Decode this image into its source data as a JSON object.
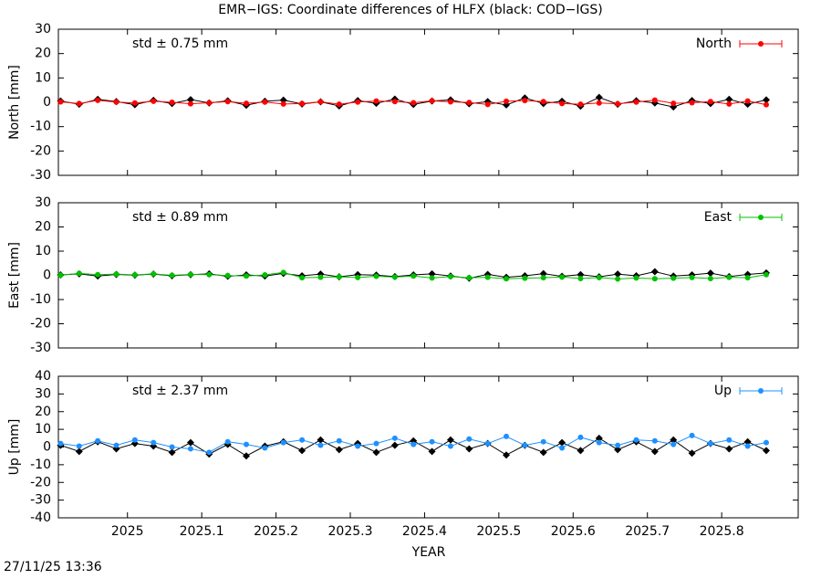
{
  "title": "EMR−IGS: Coordinate differences of HLFX (black: COD−IGS)",
  "xlabel": "YEAR",
  "timestamp": "27/11/25 13:36",
  "chart_data": [
    {
      "type": "line",
      "ylabel": "North [mm]",
      "annotation": "std ± 0.75 mm",
      "annotation_color": "#ff0000",
      "legend": "top-right",
      "xlim": [
        2024.907,
        2025.903
      ],
      "xticks": [
        2025,
        2025.1,
        2025.2,
        2025.3,
        2025.4,
        2025.5,
        2025.6,
        2025.7,
        2025.8
      ],
      "ylim": [
        -30,
        30
      ],
      "yticks": [
        -30,
        -20,
        -10,
        0,
        10,
        20,
        30
      ],
      "x": [
        2024.91,
        2024.935,
        2024.96,
        2024.985,
        2025.01,
        2025.035,
        2025.06,
        2025.085,
        2025.11,
        2025.135,
        2025.16,
        2025.185,
        2025.21,
        2025.235,
        2025.26,
        2025.285,
        2025.31,
        2025.335,
        2025.36,
        2025.385,
        2025.41,
        2025.435,
        2025.46,
        2025.485,
        2025.51,
        2025.535,
        2025.56,
        2025.585,
        2025.61,
        2025.635,
        2025.66,
        2025.685,
        2025.71,
        2025.735,
        2025.76,
        2025.785,
        2025.81,
        2025.835,
        2025.86
      ],
      "series": [
        {
          "color": "#000000",
          "values": [
            0.5,
            -0.8,
            1.2,
            0.3,
            -1.0,
            0.8,
            -0.5,
            1.1,
            -0.3,
            0.6,
            -1.2,
            0.4,
            0.9,
            -0.7,
            0.2,
            -1.5,
            0.7,
            -0.4,
            1.3,
            -0.9,
            0.5,
            1.0,
            -0.6,
            0.3,
            -1.1,
            1.8,
            -0.5,
            0.4,
            -1.6,
            2.0,
            -0.8,
            0.6,
            -0.3,
            -1.9,
            0.7,
            -0.5,
            1.2,
            -0.8,
            1.0
          ]
        },
        {
          "name": "North",
          "color": "#ff0000",
          "values": [
            0.2,
            -0.5,
            0.8,
            0.1,
            -0.3,
            0.4,
            0.0,
            -0.6,
            -0.2,
            0.3,
            -0.4,
            0.1,
            -0.7,
            -0.5,
            0.2,
            -0.8,
            0.1,
            0.5,
            0.3,
            -0.2,
            0.6,
            0.2,
            -0.1,
            -0.9,
            0.4,
            0.7,
            0.3,
            -0.5,
            -0.8,
            -0.3,
            -0.6,
            0.1,
            0.9,
            -0.4,
            -0.2,
            0.3,
            -0.7,
            0.5,
            -1.0
          ]
        }
      ]
    },
    {
      "type": "line",
      "ylabel": "East [mm]",
      "annotation": "std ± 0.89 mm",
      "annotation_color": "#00c000",
      "legend": "top-right",
      "xlim": [
        2024.907,
        2025.903
      ],
      "xticks": [
        2025,
        2025.1,
        2025.2,
        2025.3,
        2025.4,
        2025.5,
        2025.6,
        2025.7,
        2025.8
      ],
      "ylim": [
        -30,
        30
      ],
      "yticks": [
        -30,
        -20,
        -10,
        0,
        10,
        20,
        30
      ],
      "x": [
        2024.91,
        2024.935,
        2024.96,
        2024.985,
        2025.01,
        2025.035,
        2025.06,
        2025.085,
        2025.11,
        2025.135,
        2025.16,
        2025.185,
        2025.21,
        2025.235,
        2025.26,
        2025.285,
        2025.31,
        2025.335,
        2025.36,
        2025.385,
        2025.41,
        2025.435,
        2025.46,
        2025.485,
        2025.51,
        2025.535,
        2025.56,
        2025.585,
        2025.61,
        2025.635,
        2025.66,
        2025.685,
        2025.71,
        2025.735,
        2025.76,
        2025.785,
        2025.81,
        2025.835,
        2025.86
      ],
      "series": [
        {
          "color": "#000000",
          "values": [
            0.2,
            0.6,
            -0.3,
            0.4,
            0.1,
            0.5,
            -0.2,
            0.3,
            0.6,
            -0.4,
            0.2,
            -0.3,
            0.8,
            -0.2,
            0.5,
            -0.6,
            0.3,
            0.1,
            -0.5,
            0.2,
            0.6,
            -0.3,
            -1.2,
            0.4,
            -0.8,
            -0.2,
            0.7,
            -0.4,
            0.3,
            -0.6,
            0.5,
            -0.2,
            1.5,
            -0.3,
            0.2,
            0.9,
            -0.5,
            0.4,
            1.0
          ]
        },
        {
          "name": "East",
          "color": "#00c000",
          "values": [
            0.1,
            0.8,
            0.3,
            0.5,
            0.2,
            0.6,
            0.0,
            0.4,
            0.3,
            -0.1,
            -0.3,
            0.2,
            1.2,
            -1.0,
            -0.8,
            -0.6,
            -0.9,
            -0.4,
            -0.7,
            -0.3,
            -1.1,
            -0.5,
            -1.0,
            -0.8,
            -1.4,
            -1.2,
            -1.0,
            -0.7,
            -1.3,
            -0.9,
            -1.5,
            -1.1,
            -1.4,
            -1.2,
            -0.9,
            -1.3,
            -0.8,
            -1.0,
            0.3
          ]
        }
      ]
    },
    {
      "type": "line",
      "ylabel": "Up [mm]",
      "annotation": "std ± 2.37 mm",
      "annotation_color": "#1e90ff",
      "legend": "top-right",
      "xlim": [
        2024.907,
        2025.903
      ],
      "xticks": [
        2025,
        2025.1,
        2025.2,
        2025.3,
        2025.4,
        2025.5,
        2025.6,
        2025.7,
        2025.8
      ],
      "ylim": [
        -40,
        40
      ],
      "yticks": [
        -40,
        -30,
        -20,
        -10,
        0,
        10,
        20,
        30,
        40
      ],
      "x": [
        2024.91,
        2024.935,
        2024.96,
        2024.985,
        2025.01,
        2025.035,
        2025.06,
        2025.085,
        2025.11,
        2025.135,
        2025.16,
        2025.185,
        2025.21,
        2025.235,
        2025.26,
        2025.285,
        2025.31,
        2025.335,
        2025.36,
        2025.385,
        2025.41,
        2025.435,
        2025.46,
        2025.485,
        2025.51,
        2025.535,
        2025.56,
        2025.585,
        2025.61,
        2025.635,
        2025.66,
        2025.685,
        2025.71,
        2025.735,
        2025.76,
        2025.785,
        2025.81,
        2025.835,
        2025.86
      ],
      "series": [
        {
          "color": "#000000",
          "values": [
            1.0,
            -2.5,
            3.0,
            -1.0,
            2.0,
            0.5,
            -3.0,
            2.5,
            -4.0,
            1.5,
            -5.0,
            0.5,
            3.0,
            -2.0,
            4.0,
            -1.5,
            2.0,
            -3.0,
            1.0,
            3.5,
            -2.5,
            4.0,
            -1.0,
            2.0,
            -4.5,
            1.0,
            -3.0,
            2.5,
            -2.0,
            5.0,
            -1.5,
            3.0,
            -2.5,
            4.0,
            -3.5,
            2.0,
            -1.0,
            3.0,
            -2.0
          ]
        },
        {
          "name": "Up",
          "color": "#1e90ff",
          "values": [
            2.0,
            0.5,
            3.5,
            1.0,
            4.0,
            2.5,
            0.0,
            -1.0,
            -3.0,
            3.0,
            1.5,
            -0.5,
            2.5,
            4.0,
            1.0,
            3.5,
            0.5,
            2.0,
            5.0,
            1.5,
            3.0,
            0.5,
            4.5,
            2.0,
            6.0,
            1.0,
            3.0,
            -0.5,
            5.5,
            2.5,
            1.0,
            4.0,
            3.5,
            1.5,
            6.5,
            2.0,
            4.0,
            0.5,
            2.5
          ]
        }
      ]
    }
  ]
}
